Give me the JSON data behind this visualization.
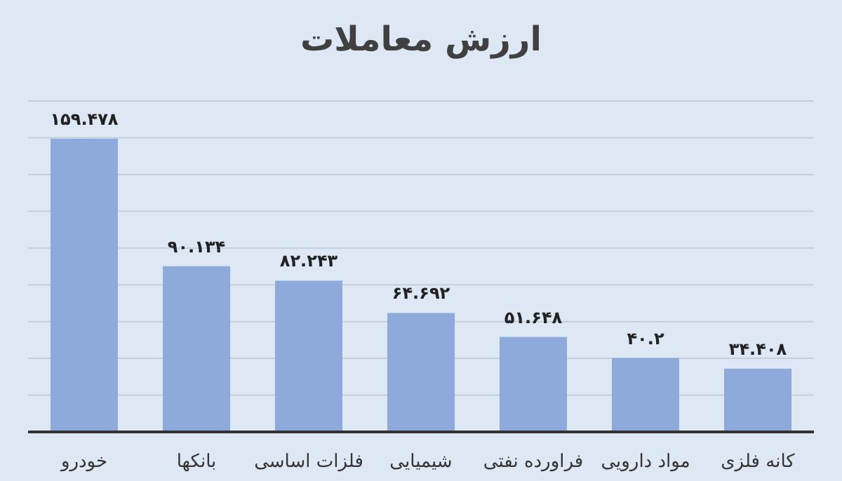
{
  "chart_data": {
    "type": "bar",
    "title": "ارزش معاملات",
    "categories": [
      "خودرو",
      "بانکها",
      "فلزات اساسی",
      "شیمیایی",
      "فراورده نفتی",
      "مواد دارویی",
      "کانه فلزی"
    ],
    "values": [
      159.478,
      90.134,
      82.243,
      64.692,
      51.648,
      40.2,
      34.408
    ],
    "value_labels": [
      "۱۵۹.۴۷۸",
      "۹۰.۱۳۴",
      "۸۲.۲۴۳",
      "۶۴.۶۹۲",
      "۵۱.۶۴۸",
      "۴۰.۲",
      "۳۴.۴۰۸"
    ],
    "color": "#8eaadb",
    "ylim": [
      0,
      180
    ],
    "yticks": [
      {
        "value": 0,
        "label": null
      },
      {
        "value": 20,
        "label": null
      },
      {
        "value": 40,
        "label": null
      },
      {
        "value": 60,
        "label": null
      },
      {
        "value": 80,
        "label": null
      },
      {
        "value": 100,
        "label": null
      },
      {
        "value": 120,
        "label": null
      },
      {
        "value": 140,
        "label": null
      },
      {
        "value": 160,
        "label": null
      },
      {
        "value": 180,
        "label": null
      }
    ],
    "grid": "y",
    "tick_labels": "x"
  }
}
